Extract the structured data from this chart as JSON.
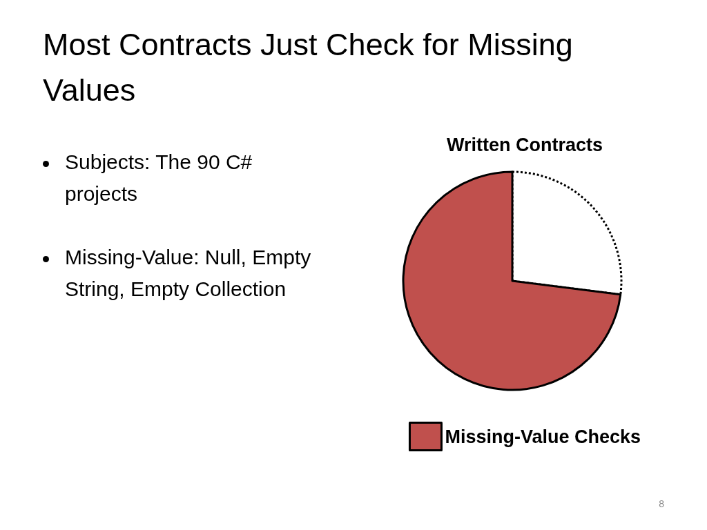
{
  "chart_data": {
    "type": "pie",
    "title": "Most Contracts Just Check for Missing Values",
    "subtitle": "Written Contracts",
    "categories": [
      null,
      "Missing-Value Checks"
    ],
    "values": [
      27,
      73
    ],
    "colors": [
      "#ffffff",
      "#c0504d"
    ],
    "legend": "bottom",
    "annotations": [
      "Subjects: The 90 C# projects",
      "Missing-Value: Null, Empty String, Empty Collection",
      "8"
    ]
  }
}
